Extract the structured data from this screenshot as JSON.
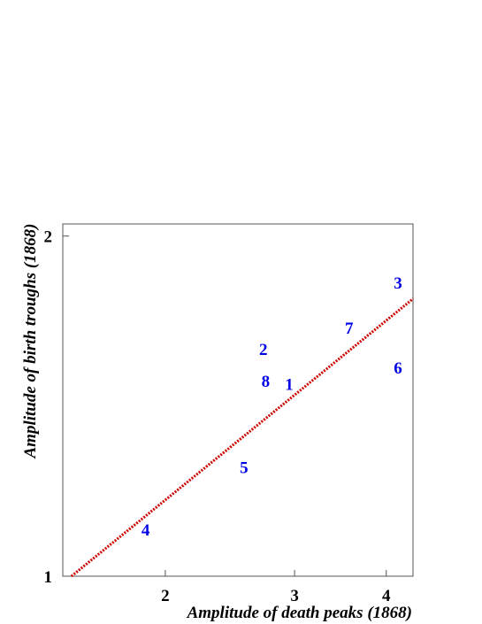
{
  "chart_data": {
    "type": "scatter",
    "xlabel": "Amplitude of death peaks (1868)",
    "ylabel": "Amplitude of birth troughs (1868)",
    "x_scale": "log",
    "y_scale": "log",
    "xlim": [
      1.45,
      4.35
    ],
    "ylim": [
      1.0,
      2.05
    ],
    "x_ticks": [
      "2",
      "3",
      "4"
    ],
    "y_ticks": [
      "1",
      "2"
    ],
    "grid": false,
    "points_color": "#0000e6",
    "fit_color": "#cc0000",
    "points": [
      {
        "label": "1",
        "x": 2.95,
        "y": 1.48
      },
      {
        "label": "2",
        "x": 2.72,
        "y": 1.59
      },
      {
        "label": "3",
        "x": 4.15,
        "y": 1.82
      },
      {
        "label": "4",
        "x": 1.88,
        "y": 1.1
      },
      {
        "label": "5",
        "x": 2.56,
        "y": 1.25
      },
      {
        "label": "6",
        "x": 4.15,
        "y": 1.53
      },
      {
        "label": "7",
        "x": 3.56,
        "y": 1.66
      },
      {
        "label": "8",
        "x": 2.74,
        "y": 1.49
      }
    ],
    "fit_line": [
      {
        "x": 1.49,
        "y": 1.0
      },
      {
        "x": 4.35,
        "y": 1.76
      }
    ]
  }
}
